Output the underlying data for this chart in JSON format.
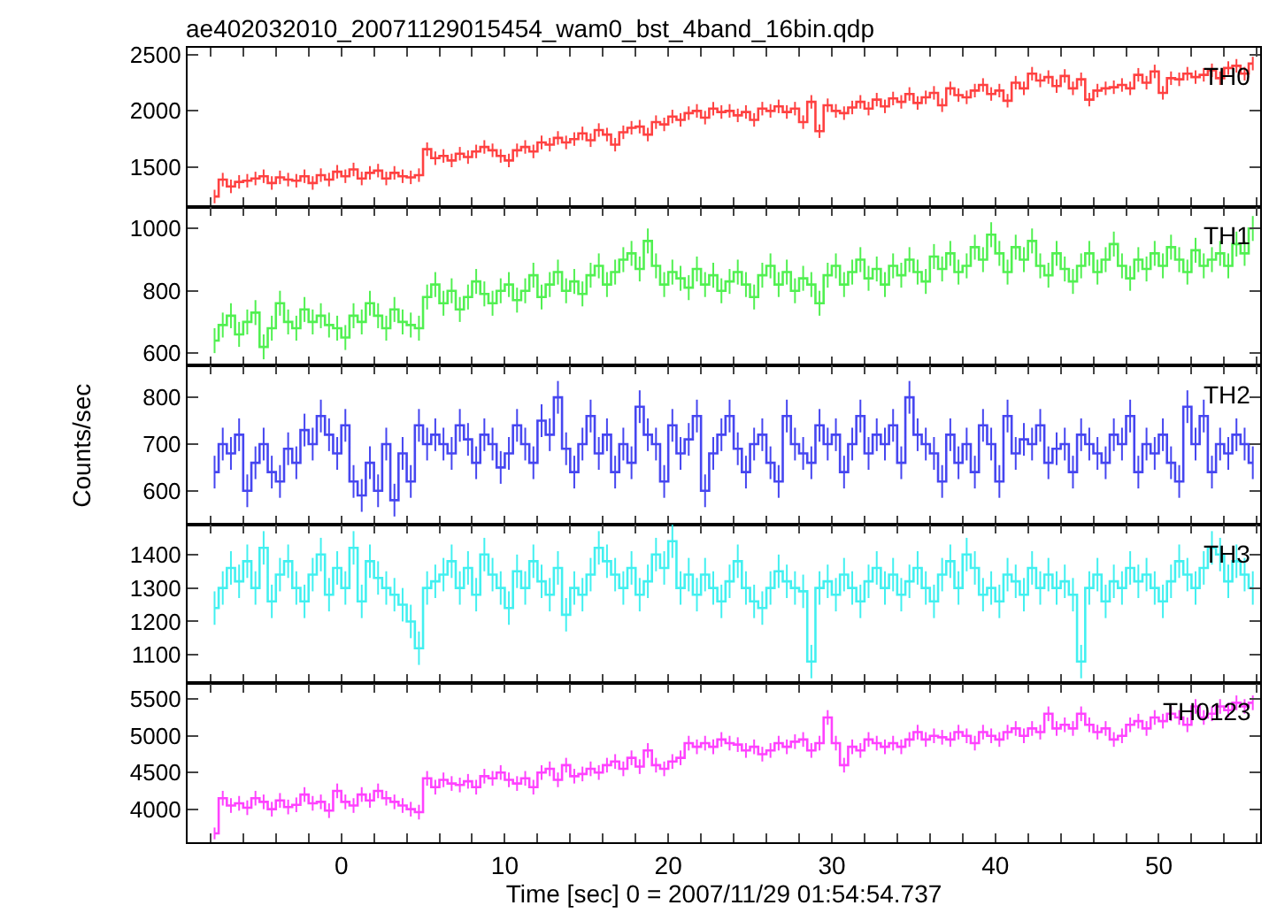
{
  "chart_data": [
    {
      "type": "step",
      "title": "ae402032010_20071129015454_wam0_bst_4band_16bin.qdp",
      "tick_labels": "y",
      "marker": "none",
      "legend": "top right",
      "grid": false,
      "xlim": [
        -9.4,
        56.2
      ],
      "ylim": [
        1150,
        2560
      ],
      "yticks": [
        1500,
        2000,
        2500
      ],
      "x": [
        -7.75,
        -7.25,
        -6.75,
        -6.25,
        -5.75,
        -5.25,
        -4.75,
        -4.25,
        -3.75,
        -3.25,
        -2.75,
        -2.25,
        -1.75,
        -1.25,
        -0.75,
        -0.25,
        0.25,
        0.75,
        1.25,
        1.75,
        2.25,
        2.75,
        3.25,
        3.75,
        4.25,
        4.75,
        5.25,
        5.75,
        6.25,
        6.75,
        7.25,
        7.75,
        8.25,
        8.75,
        9.25,
        9.75,
        10.25,
        10.75,
        11.25,
        11.75,
        12.25,
        12.75,
        13.25,
        13.75,
        14.25,
        14.75,
        15.25,
        15.75,
        16.25,
        16.75,
        17.25,
        17.75,
        18.25,
        18.75,
        19.25,
        19.75,
        20.25,
        20.75,
        21.25,
        21.75,
        22.25,
        22.75,
        23.25,
        23.75,
        24.25,
        24.75,
        25.25,
        25.75,
        26.25,
        26.75,
        27.25,
        27.75,
        28.25,
        28.75,
        29.25,
        29.75,
        30.25,
        30.75,
        31.25,
        31.75,
        32.25,
        32.75,
        33.25,
        33.75,
        34.25,
        34.75,
        35.25,
        35.75,
        36.25,
        36.75,
        37.25,
        37.75,
        38.25,
        38.75,
        39.25,
        39.75,
        40.25,
        40.75,
        41.25,
        41.75,
        42.25,
        42.75,
        43.25,
        43.75,
        44.25,
        44.75,
        45.25,
        45.75,
        46.25,
        46.75,
        47.25,
        47.75,
        48.25,
        48.75,
        49.25,
        49.75,
        50.25,
        50.75,
        51.25,
        51.75,
        52.25,
        52.75,
        53.25,
        53.75,
        54.25,
        54.75,
        55.25,
        55.75
      ],
      "series": [
        {
          "name": "TH0",
          "color": "#ff2020",
          "errors": [
            60,
            60,
            60,
            60,
            60,
            60,
            60,
            60,
            60,
            60,
            60,
            60,
            60,
            60,
            60,
            60,
            60,
            60,
            60,
            60,
            60,
            60,
            60,
            60,
            60,
            60,
            60,
            60,
            60,
            60,
            60,
            60,
            60,
            60,
            60,
            60,
            60,
            60,
            60,
            60,
            60,
            60,
            60,
            60,
            60,
            60,
            60,
            60,
            60,
            60,
            60,
            60,
            60,
            60,
            60,
            60,
            60,
            60,
            60,
            60,
            60,
            60,
            60,
            60,
            60,
            60,
            60,
            60,
            60,
            60,
            60,
            60,
            60,
            60,
            60,
            60,
            60,
            60,
            60,
            60,
            60,
            60,
            60,
            60,
            60,
            60,
            60,
            60,
            60,
            60,
            60,
            60,
            60,
            60,
            60,
            60,
            60,
            60,
            60,
            60,
            60,
            60,
            60,
            60,
            60,
            60,
            60,
            60,
            60,
            60,
            60,
            60,
            60,
            60,
            60,
            60,
            60,
            60,
            60,
            60,
            60,
            60,
            60,
            60,
            60,
            60,
            60,
            60
          ],
          "values": [
            1240,
            1390,
            1330,
            1370,
            1380,
            1400,
            1420,
            1360,
            1410,
            1390,
            1380,
            1420,
            1360,
            1430,
            1390,
            1460,
            1420,
            1480,
            1400,
            1450,
            1470,
            1400,
            1450,
            1420,
            1410,
            1430,
            1660,
            1580,
            1600,
            1560,
            1620,
            1590,
            1640,
            1680,
            1650,
            1600,
            1560,
            1650,
            1680,
            1640,
            1720,
            1700,
            1760,
            1720,
            1750,
            1800,
            1740,
            1830,
            1790,
            1700,
            1810,
            1850,
            1860,
            1790,
            1900,
            1880,
            1950,
            1920,
            1980,
            2000,
            1940,
            2020,
            1990,
            2000,
            1960,
            1990,
            1920,
            2020,
            2000,
            2040,
            1990,
            2020,
            1900,
            2080,
            1820,
            2050,
            2000,
            1980,
            2030,
            2080,
            2020,
            2100,
            2040,
            2110,
            2080,
            2150,
            2070,
            2120,
            2160,
            2050,
            2200,
            2140,
            2120,
            2180,
            2230,
            2150,
            2180,
            2090,
            2250,
            2200,
            2330,
            2270,
            2300,
            2220,
            2310,
            2200,
            2280,
            2100,
            2180,
            2200,
            2210,
            2230,
            2200,
            2320,
            2250,
            2350,
            2160,
            2290,
            2280,
            2330,
            2300,
            2320,
            2360,
            2290,
            2380,
            2400,
            2330,
            2420
          ]
        }
      ]
    },
    {
      "type": "step",
      "tick_labels": "y",
      "marker": "none",
      "legend": "top right",
      "grid": false,
      "xlim": [
        -9.4,
        56.2
      ],
      "ylim": [
        560,
        1070
      ],
      "yticks": [
        600,
        800,
        1000
      ],
      "x": [
        -7.75,
        -7.25,
        -6.75,
        -6.25,
        -5.75,
        -5.25,
        -4.75,
        -4.25,
        -3.75,
        -3.25,
        -2.75,
        -2.25,
        -1.75,
        -1.25,
        -0.75,
        -0.25,
        0.25,
        0.75,
        1.25,
        1.75,
        2.25,
        2.75,
        3.25,
        3.75,
        4.25,
        4.75,
        5.25,
        5.75,
        6.25,
        6.75,
        7.25,
        7.75,
        8.25,
        8.75,
        9.25,
        9.75,
        10.25,
        10.75,
        11.25,
        11.75,
        12.25,
        12.75,
        13.25,
        13.75,
        14.25,
        14.75,
        15.25,
        15.75,
        16.25,
        16.75,
        17.25,
        17.75,
        18.25,
        18.75,
        19.25,
        19.75,
        20.25,
        20.75,
        21.25,
        21.75,
        22.25,
        22.75,
        23.25,
        23.75,
        24.25,
        24.75,
        25.25,
        25.75,
        26.25,
        26.75,
        27.25,
        27.75,
        28.25,
        28.75,
        29.25,
        29.75,
        30.25,
        30.75,
        31.25,
        31.75,
        32.25,
        32.75,
        33.25,
        33.75,
        34.25,
        34.75,
        35.25,
        35.75,
        36.25,
        36.75,
        37.25,
        37.75,
        38.25,
        38.75,
        39.25,
        39.75,
        40.25,
        40.75,
        41.25,
        41.75,
        42.25,
        42.75,
        43.25,
        43.75,
        44.25,
        44.75,
        45.25,
        45.75,
        46.25,
        46.75,
        47.25,
        47.75,
        48.25,
        48.75,
        49.25,
        49.75,
        50.25,
        50.75,
        51.25,
        51.75,
        52.25,
        52.75,
        53.25,
        53.75,
        54.25,
        54.75,
        55.25,
        55.75
      ],
      "series": [
        {
          "name": "TH1",
          "color": "#33ee33",
          "errors": [
            40,
            40,
            40,
            40,
            40,
            40,
            40,
            40,
            40,
            40,
            40,
            40,
            40,
            40,
            40,
            40,
            40,
            40,
            40,
            40,
            40,
            40,
            40,
            40,
            40,
            40,
            40,
            40,
            40,
            40,
            40,
            40,
            40,
            40,
            40,
            40,
            40,
            40,
            40,
            40,
            40,
            40,
            40,
            40,
            40,
            40,
            40,
            40,
            40,
            40,
            40,
            40,
            40,
            40,
            40,
            40,
            40,
            40,
            40,
            40,
            40,
            40,
            40,
            40,
            40,
            40,
            40,
            40,
            40,
            40,
            40,
            40,
            40,
            40,
            40,
            40,
            40,
            40,
            40,
            40,
            40,
            40,
            40,
            40,
            40,
            40,
            40,
            40,
            40,
            40,
            40,
            40,
            40,
            40,
            40,
            40,
            40,
            40,
            40,
            40,
            40,
            40,
            40,
            40,
            40,
            40,
            40,
            40,
            40,
            40,
            40,
            40,
            40,
            40,
            40,
            40,
            40,
            40,
            40,
            40,
            40,
            40,
            40,
            40,
            40,
            40,
            40,
            40
          ],
          "values": [
            640,
            690,
            720,
            660,
            700,
            730,
            620,
            680,
            760,
            700,
            680,
            740,
            700,
            720,
            690,
            680,
            650,
            720,
            700,
            760,
            720,
            680,
            740,
            700,
            690,
            680,
            780,
            820,
            760,
            800,
            740,
            780,
            830,
            790,
            760,
            800,
            820,
            770,
            800,
            850,
            780,
            820,
            860,
            800,
            830,
            790,
            850,
            880,
            820,
            860,
            900,
            920,
            870,
            960,
            880,
            820,
            860,
            840,
            810,
            870,
            820,
            850,
            800,
            830,
            860,
            820,
            780,
            850,
            880,
            820,
            860,
            800,
            840,
            820,
            760,
            850,
            880,
            820,
            860,
            900,
            840,
            870,
            820,
            880,
            850,
            900,
            860,
            830,
            910,
            870,
            920,
            860,
            880,
            940,
            900,
            980,
            920,
            860,
            940,
            900,
            960,
            880,
            850,
            920,
            870,
            830,
            880,
            920,
            860,
            900,
            950,
            880,
            840,
            900,
            870,
            920,
            880,
            940,
            900,
            860,
            930,
            880,
            900,
            920,
            880,
            950,
            920,
            1000
          ]
        }
      ]
    },
    {
      "type": "step",
      "ylabel": "Counts/sec",
      "tick_labels": "y",
      "marker": "none",
      "legend": "top right",
      "grid": false,
      "xlim": [
        -9.4,
        56.2
      ],
      "ylim": [
        528,
        868
      ],
      "yticks": [
        600,
        700,
        800
      ],
      "x": [
        -7.75,
        -7.25,
        -6.75,
        -6.25,
        -5.75,
        -5.25,
        -4.75,
        -4.25,
        -3.75,
        -3.25,
        -2.75,
        -2.25,
        -1.75,
        -1.25,
        -0.75,
        -0.25,
        0.25,
        0.75,
        1.25,
        1.75,
        2.25,
        2.75,
        3.25,
        3.75,
        4.25,
        4.75,
        5.25,
        5.75,
        6.25,
        6.75,
        7.25,
        7.75,
        8.25,
        8.75,
        9.25,
        9.75,
        10.25,
        10.75,
        11.25,
        11.75,
        12.25,
        12.75,
        13.25,
        13.75,
        14.25,
        14.75,
        15.25,
        15.75,
        16.25,
        16.75,
        17.25,
        17.75,
        18.25,
        18.75,
        19.25,
        19.75,
        20.25,
        20.75,
        21.25,
        21.75,
        22.25,
        22.75,
        23.25,
        23.75,
        24.25,
        24.75,
        25.25,
        25.75,
        26.25,
        26.75,
        27.25,
        27.75,
        28.25,
        28.75,
        29.25,
        29.75,
        30.25,
        30.75,
        31.25,
        31.75,
        32.25,
        32.75,
        33.25,
        33.75,
        34.25,
        34.75,
        35.25,
        35.75,
        36.25,
        36.75,
        37.25,
        37.75,
        38.25,
        38.75,
        39.25,
        39.75,
        40.25,
        40.75,
        41.25,
        41.75,
        42.25,
        42.75,
        43.25,
        43.75,
        44.25,
        44.75,
        45.25,
        45.75,
        46.25,
        46.75,
        47.25,
        47.75,
        48.25,
        48.75,
        49.25,
        49.75,
        50.25,
        50.75,
        51.25,
        51.75,
        52.25,
        52.75,
        53.25,
        53.75,
        54.25,
        54.75,
        55.25,
        55.75
      ],
      "series": [
        {
          "name": "TH2",
          "color": "#2626ee",
          "errors": [
            35,
            35,
            35,
            35,
            35,
            35,
            35,
            35,
            35,
            35,
            35,
            35,
            35,
            35,
            35,
            35,
            35,
            35,
            35,
            35,
            35,
            35,
            35,
            35,
            35,
            35,
            35,
            35,
            35,
            35,
            35,
            35,
            35,
            35,
            35,
            35,
            35,
            35,
            35,
            35,
            35,
            35,
            35,
            35,
            35,
            35,
            35,
            35,
            35,
            35,
            35,
            35,
            35,
            35,
            35,
            35,
            35,
            35,
            35,
            35,
            35,
            35,
            35,
            35,
            35,
            35,
            35,
            35,
            35,
            35,
            35,
            35,
            35,
            35,
            35,
            35,
            35,
            35,
            35,
            35,
            35,
            35,
            35,
            35,
            35,
            35,
            35,
            35,
            35,
            35,
            35,
            35,
            35,
            35,
            35,
            35,
            35,
            35,
            35,
            35,
            35,
            35,
            35,
            35,
            35,
            35,
            35,
            35,
            35,
            35,
            35,
            35,
            35,
            35,
            35,
            35,
            35,
            35,
            35,
            35,
            35,
            35,
            35,
            35,
            35,
            35,
            35,
            35
          ],
          "values": [
            640,
            700,
            680,
            720,
            600,
            660,
            700,
            640,
            620,
            690,
            660,
            730,
            700,
            760,
            720,
            680,
            740,
            620,
            590,
            660,
            600,
            700,
            580,
            680,
            620,
            740,
            700,
            720,
            700,
            680,
            740,
            710,
            660,
            720,
            700,
            650,
            680,
            740,
            700,
            660,
            750,
            720,
            800,
            690,
            640,
            700,
            760,
            680,
            720,
            640,
            700,
            660,
            780,
            720,
            700,
            620,
            740,
            680,
            710,
            760,
            600,
            680,
            720,
            760,
            690,
            640,
            700,
            720,
            660,
            620,
            760,
            700,
            680,
            660,
            740,
            700,
            720,
            640,
            700,
            760,
            680,
            720,
            700,
            740,
            660,
            800,
            720,
            700,
            680,
            620,
            720,
            660,
            700,
            640,
            740,
            700,
            620,
            760,
            680,
            710,
            700,
            740,
            660,
            690,
            700,
            640,
            720,
            700,
            680,
            660,
            720,
            700,
            760,
            640,
            700,
            680,
            720,
            660,
            620,
            780,
            700,
            760,
            640,
            700,
            680,
            720,
            700,
            660
          ]
        }
      ]
    },
    {
      "type": "step",
      "tick_labels": "y",
      "marker": "none",
      "legend": "top right",
      "grid": false,
      "xlim": [
        -9.4,
        56.2
      ],
      "ylim": [
        1015,
        1490
      ],
      "yticks": [
        1100,
        1200,
        1300,
        1400
      ],
      "x": [
        -7.75,
        -7.25,
        -6.75,
        -6.25,
        -5.75,
        -5.25,
        -4.75,
        -4.25,
        -3.75,
        -3.25,
        -2.75,
        -2.25,
        -1.75,
        -1.25,
        -0.75,
        -0.25,
        0.25,
        0.75,
        1.25,
        1.75,
        2.25,
        2.75,
        3.25,
        3.75,
        4.25,
        4.75,
        5.25,
        5.75,
        6.25,
        6.75,
        7.25,
        7.75,
        8.25,
        8.75,
        9.25,
        9.75,
        10.25,
        10.75,
        11.25,
        11.75,
        12.25,
        12.75,
        13.25,
        13.75,
        14.25,
        14.75,
        15.25,
        15.75,
        16.25,
        16.75,
        17.25,
        17.75,
        18.25,
        18.75,
        19.25,
        19.75,
        20.25,
        20.75,
        21.25,
        21.75,
        22.25,
        22.75,
        23.25,
        23.75,
        24.25,
        24.75,
        25.25,
        25.75,
        26.25,
        26.75,
        27.25,
        27.75,
        28.25,
        28.75,
        29.25,
        29.75,
        30.25,
        30.75,
        31.25,
        31.75,
        32.25,
        32.75,
        33.25,
        33.75,
        34.25,
        34.75,
        35.25,
        35.75,
        36.25,
        36.75,
        37.25,
        37.75,
        38.25,
        38.75,
        39.25,
        39.75,
        40.25,
        40.75,
        41.25,
        41.75,
        42.25,
        42.75,
        43.25,
        43.75,
        44.25,
        44.75,
        45.25,
        45.75,
        46.25,
        46.75,
        47.25,
        47.75,
        48.25,
        48.75,
        49.25,
        49.75,
        50.25,
        50.75,
        51.25,
        51.75,
        52.25,
        52.75,
        53.25,
        53.75,
        54.25,
        54.75,
        55.25,
        55.75
      ],
      "series": [
        {
          "name": "TH3",
          "color": "#22eeee",
          "errors": [
            50,
            50,
            50,
            50,
            50,
            50,
            50,
            50,
            50,
            50,
            50,
            50,
            50,
            50,
            50,
            50,
            50,
            50,
            50,
            50,
            50,
            50,
            50,
            50,
            50,
            50,
            50,
            50,
            50,
            50,
            50,
            50,
            50,
            50,
            50,
            50,
            50,
            50,
            50,
            50,
            50,
            50,
            50,
            50,
            50,
            50,
            50,
            50,
            50,
            50,
            50,
            50,
            50,
            50,
            50,
            50,
            50,
            50,
            50,
            50,
            50,
            50,
            50,
            50,
            50,
            50,
            50,
            50,
            50,
            50,
            50,
            50,
            50,
            50,
            50,
            50,
            50,
            50,
            50,
            50,
            50,
            50,
            50,
            50,
            50,
            50,
            50,
            50,
            50,
            50,
            50,
            50,
            50,
            50,
            50,
            50,
            50,
            50,
            50,
            50,
            50,
            50,
            50,
            50,
            50,
            50,
            50,
            50,
            50,
            50,
            50,
            50,
            50,
            50,
            50,
            50,
            50,
            50,
            50,
            50,
            50,
            50,
            50,
            50,
            50,
            50,
            50,
            50
          ],
          "values": [
            1240,
            1300,
            1360,
            1320,
            1380,
            1300,
            1420,
            1260,
            1340,
            1380,
            1300,
            1260,
            1340,
            1400,
            1280,
            1360,
            1300,
            1420,
            1260,
            1380,
            1330,
            1300,
            1280,
            1250,
            1200,
            1120,
            1300,
            1320,
            1340,
            1380,
            1300,
            1360,
            1280,
            1400,
            1340,
            1300,
            1240,
            1350,
            1300,
            1380,
            1320,
            1280,
            1360,
            1220,
            1300,
            1280,
            1340,
            1420,
            1380,
            1340,
            1300,
            1360,
            1280,
            1320,
            1400,
            1360,
            1440,
            1300,
            1340,
            1280,
            1340,
            1300,
            1260,
            1320,
            1380,
            1300,
            1260,
            1240,
            1300,
            1350,
            1320,
            1300,
            1290,
            1080,
            1300,
            1320,
            1280,
            1340,
            1300,
            1260,
            1320,
            1360,
            1300,
            1340,
            1280,
            1320,
            1360,
            1300,
            1260,
            1340,
            1380,
            1300,
            1400,
            1360,
            1280,
            1300,
            1260,
            1340,
            1320,
            1280,
            1360,
            1300,
            1340,
            1300,
            1320,
            1280,
            1080,
            1300,
            1340,
            1260,
            1320,
            1300,
            1360,
            1320,
            1340,
            1300,
            1260,
            1320,
            1380,
            1340,
            1300,
            1360,
            1420,
            1400,
            1320,
            1380,
            1340,
            1300
          ]
        }
      ]
    },
    {
      "type": "step",
      "xlabel": "Time [sec] 0 = 2007/11/29 01:54:54.737",
      "marker": "none",
      "legend": "top right",
      "grid": false,
      "xlim": [
        -9.4,
        56.2
      ],
      "ylim": [
        3550,
        5715
      ],
      "yticks": [
        4000,
        4500,
        5000,
        5500
      ],
      "xticks": [
        {
          "value": -8,
          "label": null
        },
        {
          "value": -6,
          "label": null
        },
        {
          "value": -4,
          "label": null
        },
        {
          "value": -2,
          "label": null
        },
        0,
        {
          "value": 2,
          "label": null
        },
        {
          "value": 4,
          "label": null
        },
        {
          "value": 6,
          "label": null
        },
        {
          "value": 8,
          "label": null
        },
        10,
        {
          "value": 12,
          "label": null
        },
        {
          "value": 14,
          "label": null
        },
        {
          "value": 16,
          "label": null
        },
        {
          "value": 18,
          "label": null
        },
        20,
        {
          "value": 22,
          "label": null
        },
        {
          "value": 24,
          "label": null
        },
        {
          "value": 26,
          "label": null
        },
        {
          "value": 28,
          "label": null
        },
        30,
        {
          "value": 32,
          "label": null
        },
        {
          "value": 34,
          "label": null
        },
        {
          "value": 36,
          "label": null
        },
        {
          "value": 38,
          "label": null
        },
        40,
        {
          "value": 42,
          "label": null
        },
        {
          "value": 44,
          "label": null
        },
        {
          "value": 46,
          "label": null
        },
        {
          "value": 48,
          "label": null
        },
        50,
        {
          "value": 52,
          "label": null
        },
        {
          "value": 54,
          "label": null
        },
        {
          "value": 56,
          "label": null
        }
      ],
      "x": [
        -7.75,
        -7.25,
        -6.75,
        -6.25,
        -5.75,
        -5.25,
        -4.75,
        -4.25,
        -3.75,
        -3.25,
        -2.75,
        -2.25,
        -1.75,
        -1.25,
        -0.75,
        -0.25,
        0.25,
        0.75,
        1.25,
        1.75,
        2.25,
        2.75,
        3.25,
        3.75,
        4.25,
        4.75,
        5.25,
        5.75,
        6.25,
        6.75,
        7.25,
        7.75,
        8.25,
        8.75,
        9.25,
        9.75,
        10.25,
        10.75,
        11.25,
        11.75,
        12.25,
        12.75,
        13.25,
        13.75,
        14.25,
        14.75,
        15.25,
        15.75,
        16.25,
        16.75,
        17.25,
        17.75,
        18.25,
        18.75,
        19.25,
        19.75,
        20.25,
        20.75,
        21.25,
        21.75,
        22.25,
        22.75,
        23.25,
        23.75,
        24.25,
        24.75,
        25.25,
        25.75,
        26.25,
        26.75,
        27.25,
        27.75,
        28.25,
        28.75,
        29.25,
        29.75,
        30.25,
        30.75,
        31.25,
        31.75,
        32.25,
        32.75,
        33.25,
        33.75,
        34.25,
        34.75,
        35.25,
        35.75,
        36.25,
        36.75,
        37.25,
        37.75,
        38.25,
        38.75,
        39.25,
        39.75,
        40.25,
        40.75,
        41.25,
        41.75,
        42.25,
        42.75,
        43.25,
        43.75,
        44.25,
        44.75,
        45.25,
        45.75,
        46.25,
        46.75,
        47.25,
        47.75,
        48.25,
        48.75,
        49.25,
        49.75,
        50.25,
        50.75,
        51.25,
        51.75,
        52.25,
        52.75,
        53.25,
        53.75,
        54.25,
        54.75,
        55.25,
        55.75
      ],
      "series": [
        {
          "name": "TH0123",
          "color": "#ff22ff",
          "errors": [
            80,
            100,
            100,
            100,
            100,
            100,
            100,
            100,
            100,
            100,
            100,
            100,
            100,
            100,
            100,
            100,
            100,
            100,
            100,
            100,
            100,
            100,
            100,
            100,
            100,
            100,
            100,
            100,
            100,
            100,
            100,
            100,
            100,
            100,
            100,
            100,
            100,
            100,
            100,
            100,
            100,
            100,
            100,
            100,
            100,
            100,
            100,
            100,
            100,
            100,
            100,
            100,
            100,
            100,
            100,
            100,
            100,
            100,
            100,
            100,
            100,
            100,
            100,
            100,
            100,
            100,
            100,
            100,
            100,
            100,
            100,
            100,
            100,
            100,
            100,
            100,
            100,
            100,
            100,
            100,
            100,
            100,
            100,
            100,
            100,
            100,
            100,
            100,
            100,
            100,
            100,
            100,
            100,
            100,
            100,
            100,
            100,
            100,
            100,
            100,
            100,
            100,
            100,
            100,
            100,
            100,
            100,
            100,
            100,
            100,
            100,
            100,
            100,
            100,
            100,
            100,
            100,
            100,
            100,
            100,
            100,
            100,
            100,
            100,
            100,
            100,
            100,
            100
          ],
          "values": [
            3670,
            4150,
            4050,
            4080,
            4020,
            4150,
            4100,
            4000,
            4120,
            4030,
            4060,
            4200,
            4080,
            4100,
            3980,
            4250,
            4100,
            4050,
            4200,
            4120,
            4250,
            4150,
            4100,
            4050,
            4000,
            3960,
            4420,
            4300,
            4400,
            4350,
            4330,
            4380,
            4300,
            4450,
            4420,
            4500,
            4400,
            4350,
            4420,
            4300,
            4500,
            4550,
            4400,
            4600,
            4450,
            4480,
            4550,
            4500,
            4600,
            4650,
            4550,
            4700,
            4580,
            4800,
            4600,
            4550,
            4650,
            4700,
            4900,
            4850,
            4900,
            4850,
            4950,
            4900,
            4880,
            4800,
            4850,
            4750,
            4800,
            4900,
            4850,
            4920,
            4950,
            4800,
            4900,
            5250,
            4900,
            4600,
            4850,
            4800,
            4950,
            4900,
            4850,
            4900,
            4850,
            4950,
            5050,
            4950,
            5000,
            4980,
            4950,
            5050,
            5000,
            4900,
            5050,
            5000,
            4950,
            5050,
            5100,
            5000,
            5100,
            5050,
            5300,
            5100,
            5150,
            5100,
            5300,
            5150,
            5050,
            5100,
            4950,
            5000,
            5150,
            5200,
            5100,
            5250,
            5200,
            5300,
            5250,
            5150,
            5400,
            5250,
            5300,
            5400,
            5350,
            5450,
            5400,
            5450
          ]
        }
      ]
    }
  ]
}
